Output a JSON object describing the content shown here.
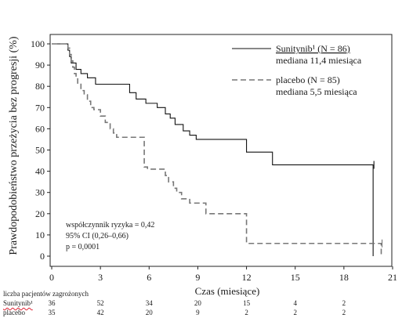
{
  "chart_data": {
    "type": "line",
    "ylabel": "Prawdopodobieństwo przeżycia bez progresji (%)",
    "xlabel": "Czas (miesiące)",
    "xlim": [
      0,
      21
    ],
    "ylim": [
      0,
      100
    ],
    "x_ticks": [
      "0",
      "3",
      "6",
      "9",
      "12",
      "15",
      "18",
      "21"
    ],
    "y_ticks": [
      "0",
      "10",
      "20",
      "30",
      "40",
      "50",
      "60",
      "70",
      "80",
      "90",
      "100"
    ],
    "grid": false,
    "legend_position": "top-right",
    "series": [
      {
        "name": "Sunitynib¹ (N = 86)",
        "subtitle": "mediana 11,4 miesiąca",
        "line_style": "solid",
        "color": "#111111",
        "x": [
          0,
          0.9,
          1.0,
          1.1,
          1.2,
          1.5,
          1.8,
          2.2,
          2.7,
          4.8,
          5.2,
          5.8,
          6.5,
          7.0,
          7.3,
          7.6,
          8.1,
          8.5,
          8.9,
          9.4,
          12.0,
          13.6,
          19.8
        ],
        "y": [
          100,
          100,
          97,
          94,
          91,
          88,
          86,
          84,
          81,
          77,
          74,
          72,
          70,
          67,
          65,
          62,
          59,
          57,
          55,
          55,
          49,
          43,
          0
        ]
      },
      {
        "name": "placebo (N = 85)",
        "subtitle": "mediana 5,5 miesiąca",
        "line_style": "dashed",
        "color": "#777777",
        "x": [
          0,
          1.0,
          1.1,
          1.2,
          1.3,
          1.4,
          1.5,
          1.6,
          1.8,
          2.0,
          2.2,
          2.4,
          2.6,
          3.0,
          3.3,
          3.6,
          3.8,
          4.0,
          4.3,
          5.7,
          5.9,
          7.0,
          7.2,
          7.5,
          7.7,
          8.0,
          8.5,
          9.5,
          12.0,
          20.3
        ],
        "y": [
          100,
          98,
          95,
          92,
          89,
          86,
          84,
          81,
          78,
          76,
          73,
          70,
          69,
          66,
          63,
          60,
          58,
          56,
          56,
          42,
          41,
          38,
          35,
          32,
          30,
          27,
          25,
          20,
          6,
          0
        ]
      }
    ],
    "censor_marks": [
      {
        "series": 0,
        "x": 19.85,
        "y": 43
      },
      {
        "series": 1,
        "x": 20.35,
        "y": 6
      }
    ],
    "annotation": {
      "line1": "współczynnik ryzyka = 0,42",
      "line2": "95% CI (0,26–0,66)",
      "line3": "p = 0,0001"
    },
    "risk_table": {
      "title": "liczba pacjentów zagrożonych",
      "rows": [
        {
          "label": "Sunitynib¹",
          "values": [
            "36",
            "52",
            "34",
            "20",
            "15",
            "4",
            "2"
          ]
        },
        {
          "label": "placebo",
          "values": [
            "35",
            "42",
            "20",
            "9",
            "2",
            "2",
            "2"
          ]
        }
      ]
    }
  }
}
